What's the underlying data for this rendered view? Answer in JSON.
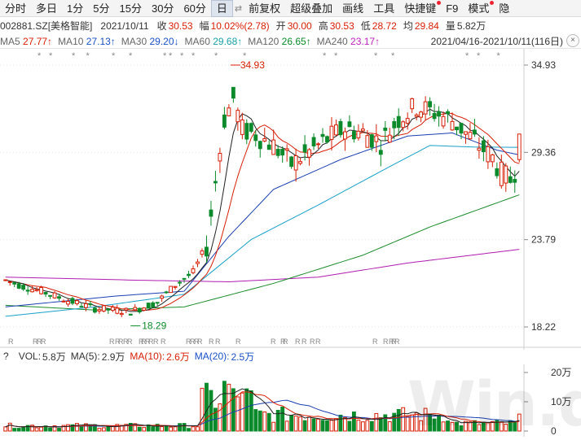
{
  "toolbar": {
    "items": [
      {
        "label": "分时",
        "active": false
      },
      {
        "label": "多日",
        "active": false
      },
      {
        "label": "1分",
        "active": false
      },
      {
        "label": "5分",
        "active": false
      },
      {
        "label": "15分",
        "active": false
      },
      {
        "label": "30分",
        "active": false
      },
      {
        "label": "60分",
        "active": false
      },
      {
        "label": "日",
        "active": true
      },
      {
        "label": "前复权",
        "active": false
      },
      {
        "label": "超级叠加",
        "active": false
      },
      {
        "label": "画线",
        "active": false
      },
      {
        "label": "工具",
        "active": false
      },
      {
        "label": "快捷键",
        "active": false,
        "dot": true
      },
      {
        "label": "F9",
        "active": false
      },
      {
        "label": "模式",
        "active": false,
        "dot": true
      },
      {
        "label": "隐",
        "active": false
      }
    ]
  },
  "info": {
    "code": "002881.SZ[美格智能]",
    "date": "2021/10/11",
    "close_label": "收",
    "close": "30.53",
    "change_label": "幅",
    "change": "10.02%(2.78)",
    "open_label": "开",
    "open": "30.00",
    "high_label": "高",
    "high": "30.53",
    "low_label": "低",
    "low": "28.72",
    "avg_label": "均",
    "avg": "29.84",
    "vol_label": "量",
    "vol": "5.82万"
  },
  "ma": {
    "ma5": "MA5",
    "ma5_val": "27.77↑",
    "ma10": "MA10",
    "ma10_val": "27.13↑",
    "ma30": "MA30",
    "ma30_val": "29.20↓",
    "ma60": "MA60",
    "ma60_val": "29.68↑",
    "ma120": "MA120",
    "ma120_val": "26.65↑",
    "ma240": "MA240",
    "ma240_val": "23.17↑",
    "range": "2021/04/16-2021/10/11(116日)",
    "range_btn": "×"
  },
  "axis": {
    "price_ticks": [
      "34.93",
      "29.36",
      "23.79",
      "18.22"
    ],
    "vol_ticks": [
      "20万",
      "10万",
      "0"
    ]
  },
  "annotations": {
    "high": "34.93",
    "low": "18.29"
  },
  "vol": {
    "q": "?",
    "label": "VOL:",
    "value": "5.8万",
    "ma5_label": "MA(5):",
    "ma5": "2.9万",
    "ma10_label": "MA(10):",
    "ma10": "2.6万",
    "ma20_label": "MA(20):",
    "ma20": "2.5万"
  },
  "markers": {
    "star": "*",
    "r": "R"
  },
  "watermark": "Win.d",
  "colors": {
    "up": "#d81e06",
    "down": "#0a8a2a",
    "ma5": "#222222",
    "ma10": "#d81e06",
    "ma30": "#1a3fb0",
    "ma60": "#18a0c8",
    "ma120": "#1c8c2c",
    "ma240": "#b01cb0"
  }
}
